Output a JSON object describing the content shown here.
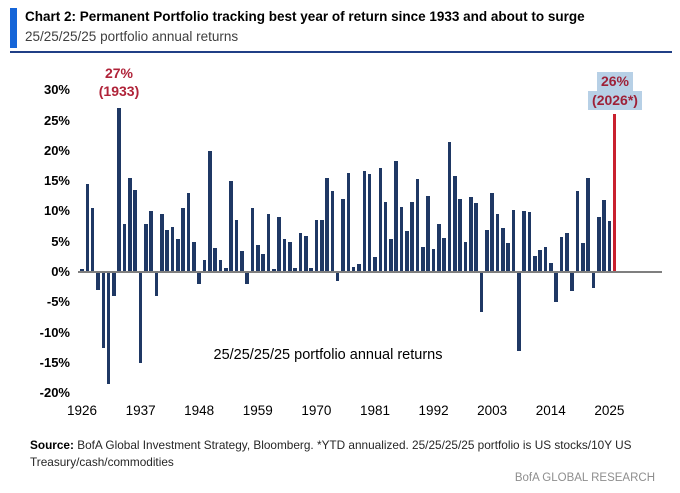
{
  "header": {
    "title": "Chart 2: Permanent Portfolio tracking best year of return since 1933 and about to surge",
    "subtitle": "25/25/25/25 portfolio annual returns"
  },
  "chart_data": {
    "type": "bar",
    "title": "25/25/25/25 portfolio annual returns",
    "xlabel": "",
    "ylabel": "",
    "ylim": [
      -20,
      30
    ],
    "grid": false,
    "start_year": 1926,
    "end_year": 2026,
    "values": [
      0.5,
      14.5,
      10.5,
      -3,
      -12.5,
      -18.5,
      -4,
      27,
      8,
      15.5,
      13.5,
      -15,
      8,
      10,
      -4,
      9.5,
      7,
      7.5,
      5.5,
      10.5,
      13,
      5,
      -2,
      2,
      20,
      4,
      2,
      0.7,
      15,
      8.5,
      3.5,
      -2,
      10.5,
      4.5,
      3,
      9.5,
      0.5,
      9,
      5.5,
      5,
      0.7,
      6.5,
      6,
      0.7,
      8.5,
      8.5,
      15.5,
      13.3,
      -1.5,
      12,
      16.4,
      0.8,
      1.3,
      16.6,
      16.2,
      2.5,
      17.2,
      11.6,
      5.4,
      18.3,
      10.8,
      6.8,
      11.5,
      15.3,
      4.1,
      12.5,
      3.8,
      8,
      5.6,
      21.5,
      15.8,
      12,
      5,
      12.4,
      11.4,
      -6.6,
      7,
      13,
      9.6,
      7.3,
      4.8,
      10.3,
      -13,
      10.1,
      9.9,
      2.6,
      3.6,
      4.2,
      1.5,
      -5,
      5.8,
      6.4,
      -3.1,
      13.4,
      4.8,
      15.5,
      -2.7,
      9,
      11.9,
      8.4,
      26
    ],
    "highlight_year": 2026,
    "ytick_values": [
      30,
      25,
      20,
      15,
      10,
      5,
      0,
      -5,
      -10,
      -15,
      -20
    ],
    "ytick_labels": [
      "30%",
      "25%",
      "20%",
      "15%",
      "10%",
      "5%",
      "0%",
      "-5%",
      "-10%",
      "-15%",
      "-20%"
    ],
    "xtick_years": [
      1926,
      1937,
      1948,
      1959,
      1970,
      1981,
      1992,
      2003,
      2014,
      2025
    ],
    "annotations": [
      {
        "year": 1933,
        "line1": "27%",
        "line2": "(1933)",
        "highlighted": false
      },
      {
        "year": 2026,
        "line1": "26%",
        "line2": "(2026*)",
        "highlighted": true
      }
    ],
    "inner_label": "25/25/25/25 portfolio annual returns",
    "legend": null,
    "colors": {
      "bar": "#1f3864",
      "highlight_bar": "#c9202e",
      "annotation_text": "#b02339",
      "annotation_highlight_bg": "#b7d0e6",
      "axis_line": "#7f7f7f"
    }
  },
  "footer": {
    "source_label": "Source:",
    "source_text": " BofA Global Investment Strategy, Bloomberg. *YTD annualized. 25/25/25/25 portfolio is US stocks/10Y US Treasury/cash/commodities",
    "brand": "BofA GLOBAL RESEARCH"
  },
  "theme": {
    "accent_blue": "#1565d8",
    "rule_blue": "#203f86"
  }
}
